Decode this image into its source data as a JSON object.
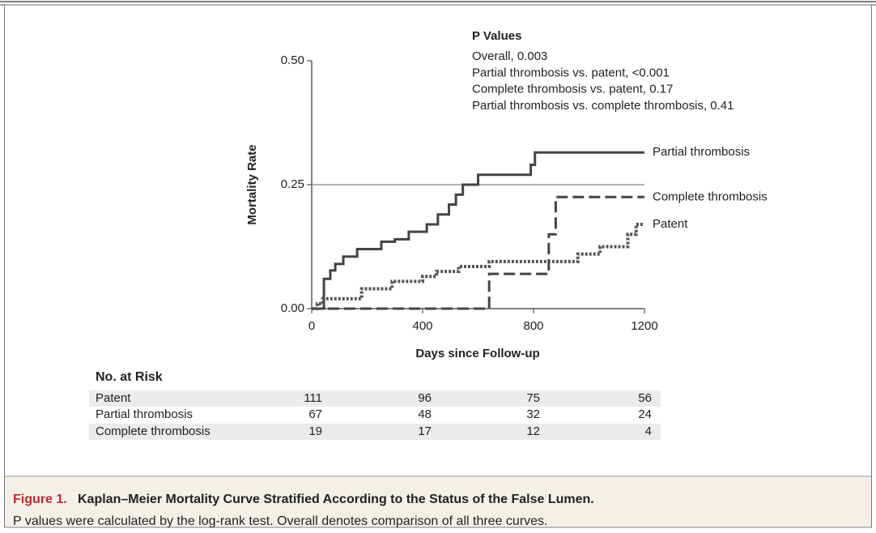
{
  "chart_data": {
    "type": "line",
    "step": true,
    "x_label": "Days since Follow-up",
    "y_label": "Mortality Rate",
    "xlim": [
      0,
      1200
    ],
    "ylim": [
      0,
      0.5
    ],
    "xticks": [
      0,
      400,
      800,
      1200
    ],
    "yticks": [
      {
        "value": 0,
        "label": "0.00"
      },
      {
        "value": 0.25,
        "label": "0.25"
      },
      {
        "value": 0.5,
        "label": "0.50"
      }
    ],
    "grid": true,
    "pvalues": {
      "title": "P Values",
      "lines": [
        "Overall, 0.003",
        "Partial thrombosis vs. patent, <0.001",
        "Complete thrombosis vs. patent, 0.17",
        "Partial thrombosis vs. complete thrombosis, 0.41"
      ]
    },
    "series": [
      {
        "name": "Partial thrombosis",
        "color": "#444444",
        "line_style": "solid",
        "x": [
          0,
          44,
          67,
          85,
          114,
          164,
          251,
          300,
          350,
          415,
          455,
          495,
          520,
          545,
          600,
          790,
          805,
          1200
        ],
        "values": [
          0,
          0.06,
          0.077,
          0.09,
          0.105,
          0.12,
          0.135,
          0.14,
          0.155,
          0.17,
          0.19,
          0.21,
          0.23,
          0.25,
          0.27,
          0.29,
          0.315,
          0.315
        ]
      },
      {
        "name": "Complete thrombosis",
        "color": "#444444",
        "line_style": "dashed",
        "x": [
          0,
          640,
          855,
          880,
          1200
        ],
        "values": [
          0,
          0.07,
          0.15,
          0.225,
          0.225
        ]
      },
      {
        "name": "Patent",
        "color": "#555555",
        "line_style": "dotted",
        "x": [
          0,
          20,
          40,
          180,
          290,
          400,
          450,
          530,
          640,
          960,
          1040,
          1140,
          1170,
          1200
        ],
        "values": [
          0,
          0.01,
          0.02,
          0.04,
          0.055,
          0.065,
          0.075,
          0.085,
          0.095,
          0.11,
          0.125,
          0.15,
          0.17,
          0.17
        ]
      }
    ]
  },
  "risk_table": {
    "title": "No. at Risk",
    "rows": [
      {
        "label": "Patent",
        "values": [
          111,
          96,
          75,
          56
        ]
      },
      {
        "label": "Partial thrombosis",
        "values": [
          67,
          48,
          32,
          24
        ]
      },
      {
        "label": "Complete thrombosis",
        "values": [
          19,
          17,
          12,
          4
        ]
      }
    ]
  },
  "caption": {
    "label": "Figure 1.",
    "title": "Kaplan–Meier Mortality Curve Stratified According to the Status of the False Lumen.",
    "text": "P values were calculated by the log-rank test. Overall denotes comparison of all three curves."
  }
}
